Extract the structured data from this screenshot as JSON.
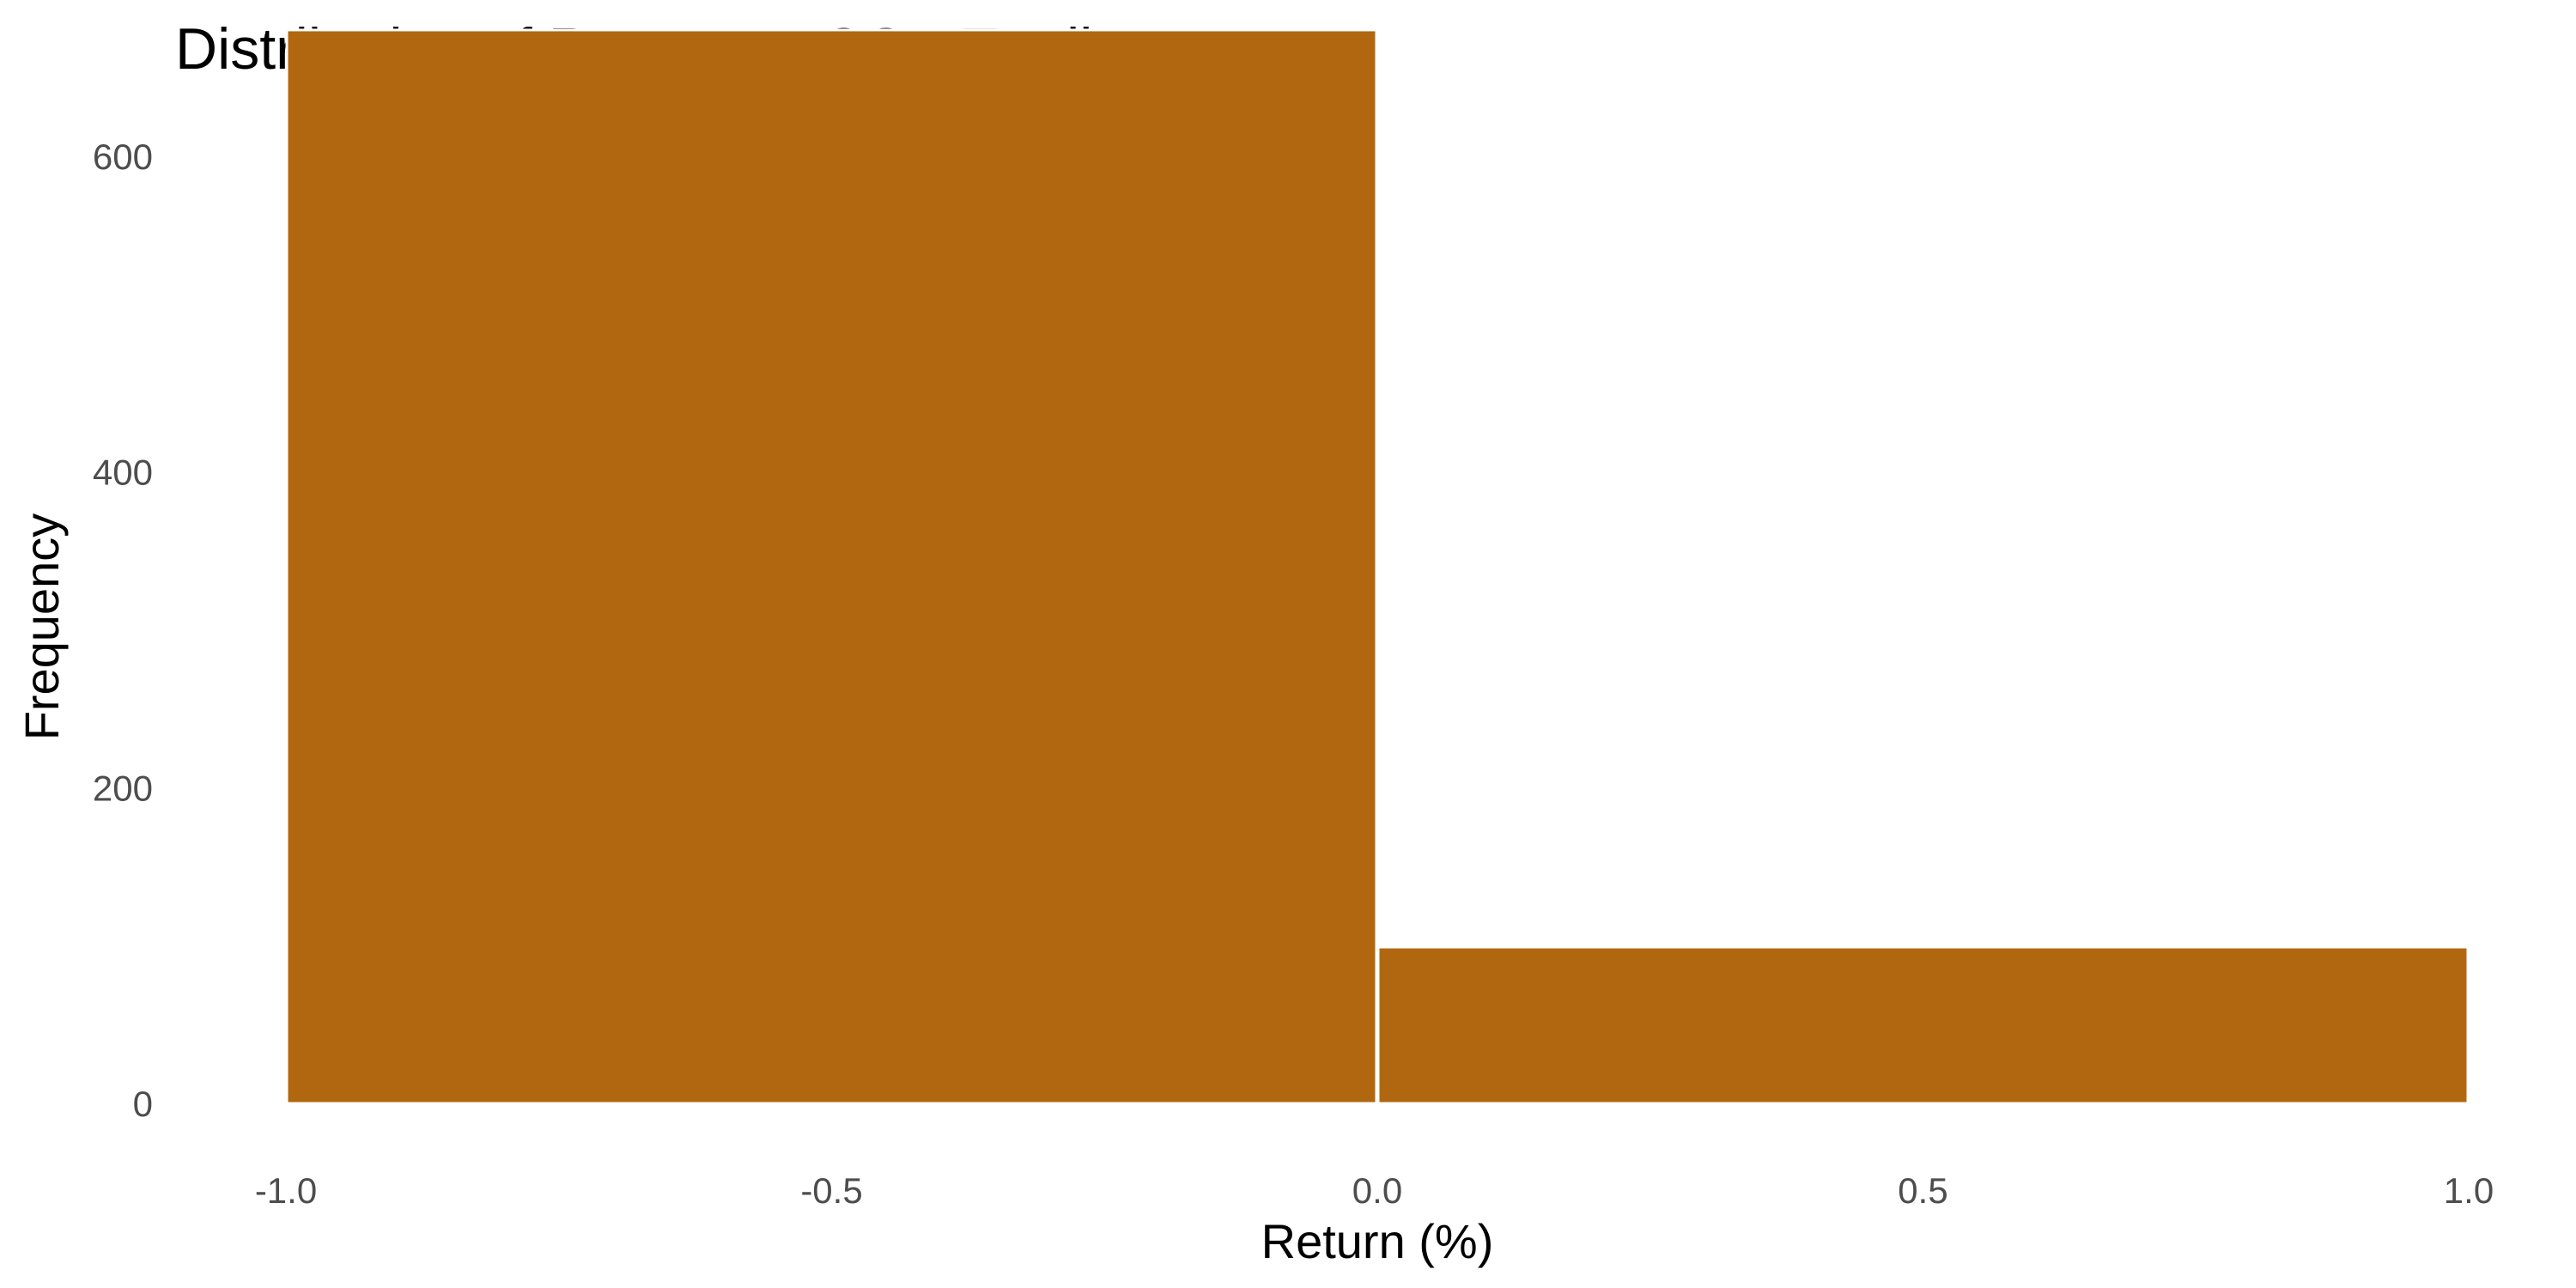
{
  "chart_data": {
    "type": "bar",
    "title": "Distribution of Return on COP Trading",
    "xlabel": "Return (%)",
    "ylabel": "Frequency",
    "bins": [
      {
        "x0": -1.0,
        "x1": 0.0,
        "count": 680
      },
      {
        "x0": 0.0,
        "x1": 1.0,
        "count": 99
      }
    ],
    "xlim": [
      -1.0,
      1.0
    ],
    "ylim": [
      0,
      680
    ],
    "x_ticks": [
      "-1.0",
      "-0.5",
      "0.0",
      "0.5",
      "1.0"
    ],
    "y_ticks": [
      "0",
      "200",
      "400",
      "600"
    ],
    "grid": false,
    "legend": "none",
    "bar_color": "#B1670F",
    "bar_edge_color": "#FFFFFF"
  }
}
